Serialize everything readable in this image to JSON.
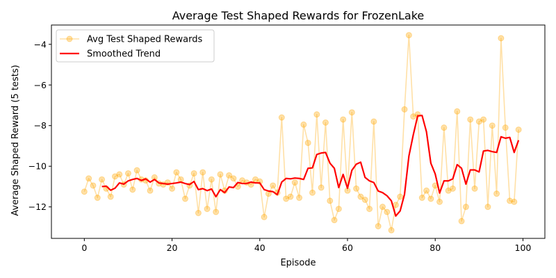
{
  "chart_data": {
    "type": "line",
    "title": "Average Test Shaped Rewards for FrozenLake",
    "xlabel": "Episode",
    "ylabel": "Average Shaped Reward (5 tests)",
    "xlim": [
      -7.5,
      105
    ],
    "ylim": [
      -13.55,
      -3.05
    ],
    "xticks": [
      0,
      20,
      40,
      60,
      80,
      100
    ],
    "yticks": [
      -12,
      -10,
      -8,
      -6,
      -4
    ],
    "grid": false,
    "legend_position": "top-left",
    "series": [
      {
        "name": "Avg Test Shaped Rewards",
        "style": "line-with-markers",
        "color": "#FFA500",
        "values": [
          -11.25,
          -10.6,
          -10.95,
          -11.55,
          -10.65,
          -11.1,
          -11.5,
          -10.5,
          -10.4,
          -10.9,
          -10.35,
          -11.15,
          -10.2,
          -10.65,
          -10.7,
          -11.2,
          -10.55,
          -10.85,
          -10.9,
          -10.8,
          -11.1,
          -10.3,
          -10.65,
          -11.6,
          -10.95,
          -10.35,
          -12.3,
          -10.3,
          -12.1,
          -10.65,
          -12.25,
          -10.4,
          -11.2,
          -10.45,
          -10.6,
          -11.0,
          -10.7,
          -10.8,
          -10.9,
          -10.65,
          -10.75,
          -12.5,
          -11.35,
          -10.95,
          -11.3,
          -7.6,
          -11.6,
          -11.5,
          -10.8,
          -11.55,
          -7.95,
          -8.85,
          -11.3,
          -7.45,
          -11.05,
          -7.85,
          -11.7,
          -12.65,
          -12.1,
          -7.7,
          -11.2,
          -7.35,
          -11.1,
          -11.5,
          -11.65,
          -12.1,
          -7.8,
          -12.95,
          -12.0,
          -12.25,
          -13.15,
          -11.9,
          -11.5,
          -7.2,
          -3.55,
          -7.55,
          -7.45,
          -11.55,
          -11.2,
          -11.6,
          -10.95,
          -11.75,
          -8.1,
          -11.2,
          -11.1,
          -7.3,
          -12.7,
          -12.0,
          -7.7,
          -11.1,
          -7.8,
          -7.7,
          -12.0,
          -8.0,
          -11.35,
          -3.7,
          -8.1,
          -11.7,
          -11.75,
          -8.2
        ]
      },
      {
        "name": "Smoothed Trend",
        "style": "line",
        "color": "#FF0000",
        "x_start": 4,
        "values": [
          -11.0,
          -10.98,
          -11.18,
          -11.08,
          -10.82,
          -10.88,
          -10.72,
          -10.65,
          -10.6,
          -10.7,
          -10.62,
          -10.78,
          -10.65,
          -10.82,
          -10.85,
          -10.88,
          -10.85,
          -10.82,
          -10.78,
          -10.85,
          -10.9,
          -10.75,
          -11.15,
          -11.1,
          -11.2,
          -11.12,
          -11.5,
          -11.15,
          -11.3,
          -11.02,
          -11.05,
          -10.8,
          -10.85,
          -10.85,
          -10.78,
          -10.82,
          -10.82,
          -11.15,
          -11.22,
          -11.25,
          -11.4,
          -10.78,
          -10.6,
          -10.62,
          -10.58,
          -10.6,
          -10.65,
          -10.1,
          -10.08,
          -9.42,
          -9.35,
          -9.32,
          -9.85,
          -10.1,
          -11.05,
          -10.4,
          -11.08,
          -10.2,
          -9.9,
          -9.8,
          -10.55,
          -10.72,
          -10.8,
          -11.22,
          -11.3,
          -11.45,
          -11.7,
          -12.45,
          -12.2,
          -11.38,
          -9.5,
          -8.45,
          -7.52,
          -7.5,
          -8.3,
          -9.85,
          -10.38,
          -11.32,
          -10.72,
          -10.72,
          -10.62,
          -9.92,
          -10.1,
          -10.88,
          -10.18,
          -10.18,
          -10.28,
          -9.25,
          -9.22,
          -9.28,
          -9.32,
          -8.55,
          -8.62,
          -8.58,
          -9.32,
          -8.72
        ]
      }
    ]
  }
}
